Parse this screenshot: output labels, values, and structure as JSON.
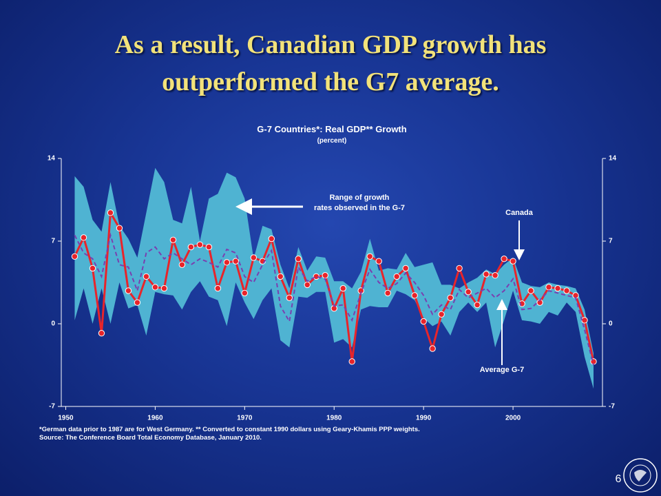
{
  "slide_title": "As a result, Canadian GDP growth has outperformed the G7 average.",
  "page_number": "6",
  "chart_data": {
    "type": "line",
    "title": "G-7 Countries*:  Real GDP** Growth",
    "subtitle": "(percent)",
    "x": [
      1951,
      1952,
      1953,
      1954,
      1955,
      1956,
      1957,
      1958,
      1959,
      1960,
      1961,
      1962,
      1963,
      1964,
      1965,
      1966,
      1967,
      1968,
      1969,
      1970,
      1971,
      1972,
      1973,
      1974,
      1975,
      1976,
      1977,
      1978,
      1979,
      1980,
      1981,
      1982,
      1983,
      1984,
      1985,
      1986,
      1987,
      1988,
      1989,
      1990,
      1991,
      1992,
      1993,
      1994,
      1995,
      1996,
      1997,
      1998,
      1999,
      2000,
      2001,
      2002,
      2003,
      2004,
      2005,
      2006,
      2007,
      2008,
      2009
    ],
    "series": [
      {
        "name": "Canada",
        "color": "#e8242a",
        "values": [
          5.7,
          7.3,
          4.7,
          -0.8,
          9.4,
          8.1,
          2.8,
          1.8,
          4,
          3.1,
          3,
          7.1,
          5,
          6.5,
          6.7,
          6.5,
          3,
          5.2,
          5.3,
          2.6,
          5.6,
          5.3,
          7.2,
          4,
          2.2,
          5.5,
          3.3,
          4,
          4.1,
          1.3,
          3,
          -3.2,
          2.8,
          5.7,
          5.3,
          2.6,
          4,
          4.7,
          2.4,
          0.2,
          -2.1,
          0.8,
          2.2,
          4.7,
          2.7,
          1.6,
          4.2,
          4.1,
          5.5,
          5.3,
          1.7,
          2.8,
          1.8,
          3.1,
          3,
          2.8,
          2.4,
          0.3,
          -3.2
        ]
      },
      {
        "name": "Average G-7",
        "color": "#7a3fb0",
        "dashed": true,
        "values": [
          7.5,
          6,
          5.5,
          4,
          7.5,
          5,
          4.8,
          2.8,
          6,
          6.5,
          5.5,
          6,
          5.5,
          5,
          5.5,
          5.2,
          4.8,
          6.3,
          6,
          4,
          3.5,
          5,
          6.2,
          1.5,
          0.2,
          4.8,
          3.6,
          4,
          3.8,
          1.5,
          1.6,
          0.3,
          2.6,
          4.6,
          3.5,
          3,
          3.4,
          4.3,
          3.5,
          2.4,
          0.8,
          1.6,
          1.2,
          2.9,
          2.2,
          2.6,
          3,
          2.2,
          2.8,
          3.8,
          1.2,
          1.3,
          2,
          2.8,
          2.6,
          2.4,
          2.2,
          -0.5,
          -3.5
        ]
      }
    ],
    "range": {
      "name": "Range of growth rates observed in the G-7",
      "color": "#4fb3d2",
      "max": [
        12.5,
        11.6,
        8.8,
        7.8,
        12,
        8.3,
        7.2,
        5.6,
        9.4,
        13.2,
        12,
        8.8,
        8.5,
        11.6,
        7,
        10.6,
        11,
        12.8,
        12.4,
        10.6,
        5.5,
        8.3,
        8,
        5,
        3,
        6.5,
        4.5,
        5.7,
        5.6,
        3.6,
        3.6,
        3,
        4.4,
        7.2,
        4.5,
        4.7,
        4.6,
        6,
        4.8,
        5,
        5.2,
        3.3,
        3.3,
        3,
        3.5,
        3.9,
        4.6,
        4.2,
        5,
        5.6,
        3.5,
        3.2,
        3.1,
        3.5,
        3.3,
        3.2,
        3,
        1.2,
        -2.5
      ],
      "min": [
        0.3,
        3,
        0,
        3,
        0,
        3.5,
        1.3,
        1.6,
        -1,
        2.7,
        2.5,
        2.4,
        1.2,
        2.7,
        3.6,
        2.3,
        2,
        -0.2,
        3.5,
        1.8,
        0.4,
        2,
        3,
        -1.4,
        -2,
        2.3,
        2.2,
        2.7,
        2.7,
        -1.6,
        -1.3,
        -2,
        1.2,
        1.5,
        1.4,
        1.4,
        2.8,
        2.5,
        2,
        0.5,
        -0.2,
        0.2,
        -1,
        1,
        1.8,
        1,
        1.8,
        -2,
        0.3,
        2.8,
        0.3,
        0.2,
        0,
        1,
        0.7,
        1.8,
        1,
        -2.8,
        -5.5
      ]
    },
    "annotations": {
      "range": [
        "Range of growth",
        "rates observed in the G-7"
      ],
      "canada": "Canada",
      "average": "Average G-7"
    },
    "xlim": [
      1949.5,
      2010
    ],
    "xticks": [
      1950,
      1960,
      1970,
      1980,
      1990,
      2000
    ],
    "ylim": [
      -7,
      14
    ],
    "yticks": [
      -7,
      0,
      7,
      14
    ],
    "y2lim": [
      -7,
      14
    ],
    "y2ticks": [
      -7,
      0,
      7,
      14
    ],
    "footnotes": [
      "*German data prior to 1987 are for West Germany.  ** Converted to constant 1990 dollars using Geary-Khamis PPP weights.",
      "Source: The Conference Board Total Economy Database, January 2010."
    ]
  }
}
